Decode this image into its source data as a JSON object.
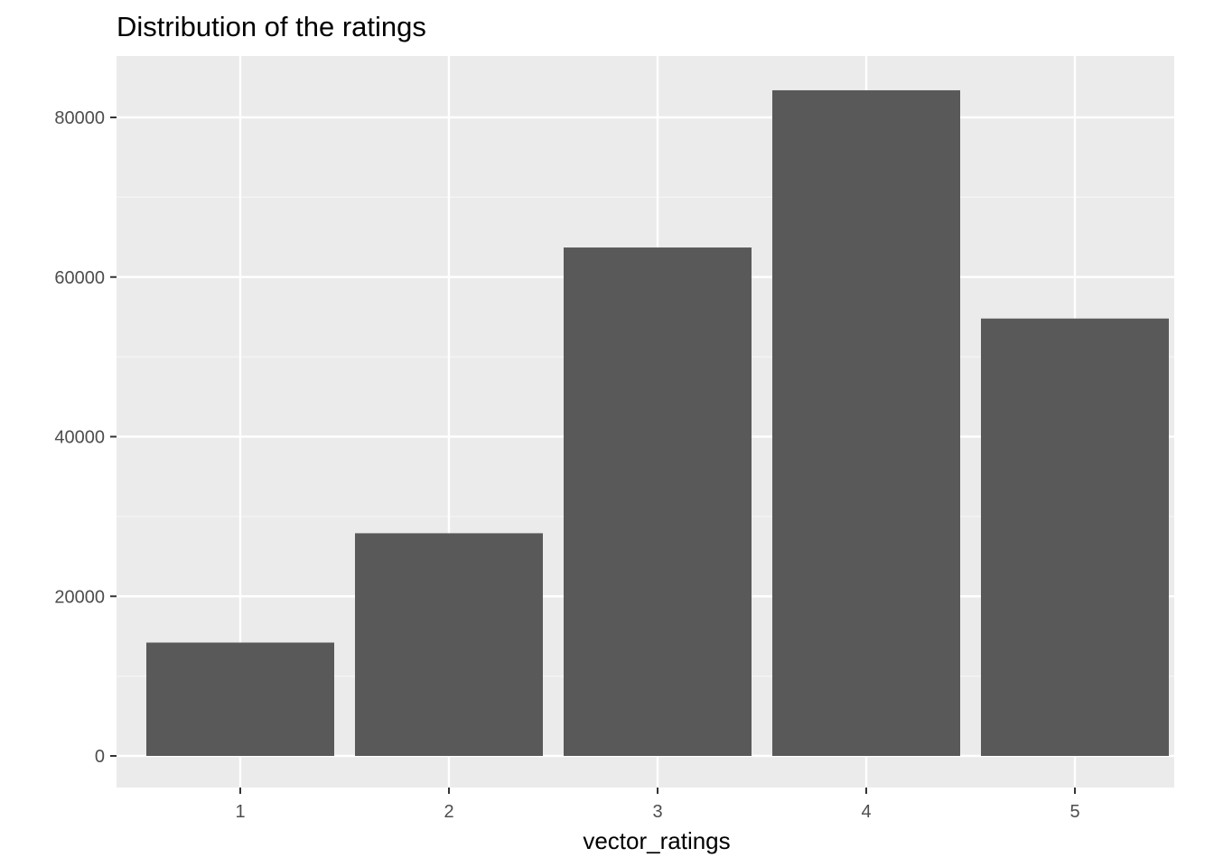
{
  "chart_data": {
    "type": "bar",
    "title": "Distribution of the ratings",
    "xlabel": "vector_ratings",
    "ylabel": "",
    "categories": [
      "1",
      "2",
      "3",
      "4",
      "5"
    ],
    "values": [
      14200,
      27900,
      63700,
      83400,
      54800
    ],
    "ylim": [
      0,
      86900
    ],
    "y_ticks": [
      0,
      20000,
      40000,
      60000,
      80000
    ],
    "y_tick_labels": [
      "0",
      "20000",
      "40000",
      "60000",
      "80000"
    ],
    "grid": true,
    "legend": "none",
    "colors": {
      "bar": "#595959",
      "panel_background": "#ebebeb",
      "grid_major": "#ffffff",
      "grid_minor": "#f5f5f5",
      "tick_mark": "#333333"
    }
  }
}
